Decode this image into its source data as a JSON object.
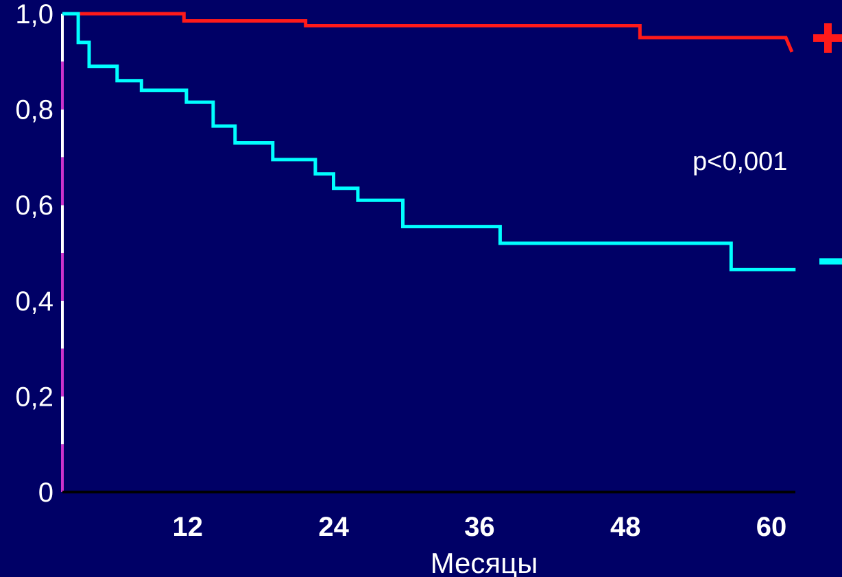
{
  "chart_data": {
    "type": "line",
    "subtype": "kaplan-meier step",
    "xlabel": "Месяцы",
    "ylabel": "",
    "x_ticks": [
      12,
      24,
      36,
      48,
      60
    ],
    "x_tick_labels": [
      "12",
      "24",
      "36",
      "48",
      "60"
    ],
    "y_ticks": [
      0,
      0.2,
      0.4,
      0.6,
      0.8,
      1.0
    ],
    "y_tick_labels": [
      "0",
      "0,2",
      "0,4",
      "0,6",
      "0,8",
      "1,0"
    ],
    "xlim": [
      0,
      60
    ],
    "ylim": [
      0,
      1.0
    ],
    "grid": false,
    "annotation": "p<0,001",
    "background_color": "#000066",
    "series": [
      {
        "name": "+",
        "color": "#ff1a1a",
        "points": [
          [
            0,
            1.0
          ],
          [
            10,
            1.0
          ],
          [
            10,
            0.985
          ],
          [
            20,
            0.985
          ],
          [
            20,
            0.975
          ],
          [
            47.5,
            0.975
          ],
          [
            47.5,
            0.95
          ],
          [
            59.5,
            0.95
          ],
          [
            60,
            0.92
          ]
        ]
      },
      {
        "name": "—",
        "color": "#00ffff",
        "points": [
          [
            0,
            1.0
          ],
          [
            1.3,
            1.0
          ],
          [
            1.3,
            0.94
          ],
          [
            2.2,
            0.94
          ],
          [
            2.2,
            0.89
          ],
          [
            4.5,
            0.89
          ],
          [
            4.5,
            0.86
          ],
          [
            6.5,
            0.86
          ],
          [
            6.5,
            0.84
          ],
          [
            10.2,
            0.84
          ],
          [
            10.2,
            0.815
          ],
          [
            12.4,
            0.815
          ],
          [
            12.4,
            0.765
          ],
          [
            14.2,
            0.765
          ],
          [
            14.2,
            0.73
          ],
          [
            17.3,
            0.73
          ],
          [
            17.3,
            0.695
          ],
          [
            20.8,
            0.695
          ],
          [
            20.8,
            0.665
          ],
          [
            22.3,
            0.665
          ],
          [
            22.3,
            0.635
          ],
          [
            24.3,
            0.635
          ],
          [
            24.3,
            0.61
          ],
          [
            28,
            0.61
          ],
          [
            28,
            0.555
          ],
          [
            36,
            0.555
          ],
          [
            36,
            0.52
          ],
          [
            55,
            0.52
          ],
          [
            55,
            0.465
          ],
          [
            60.3,
            0.465
          ]
        ]
      }
    ]
  }
}
